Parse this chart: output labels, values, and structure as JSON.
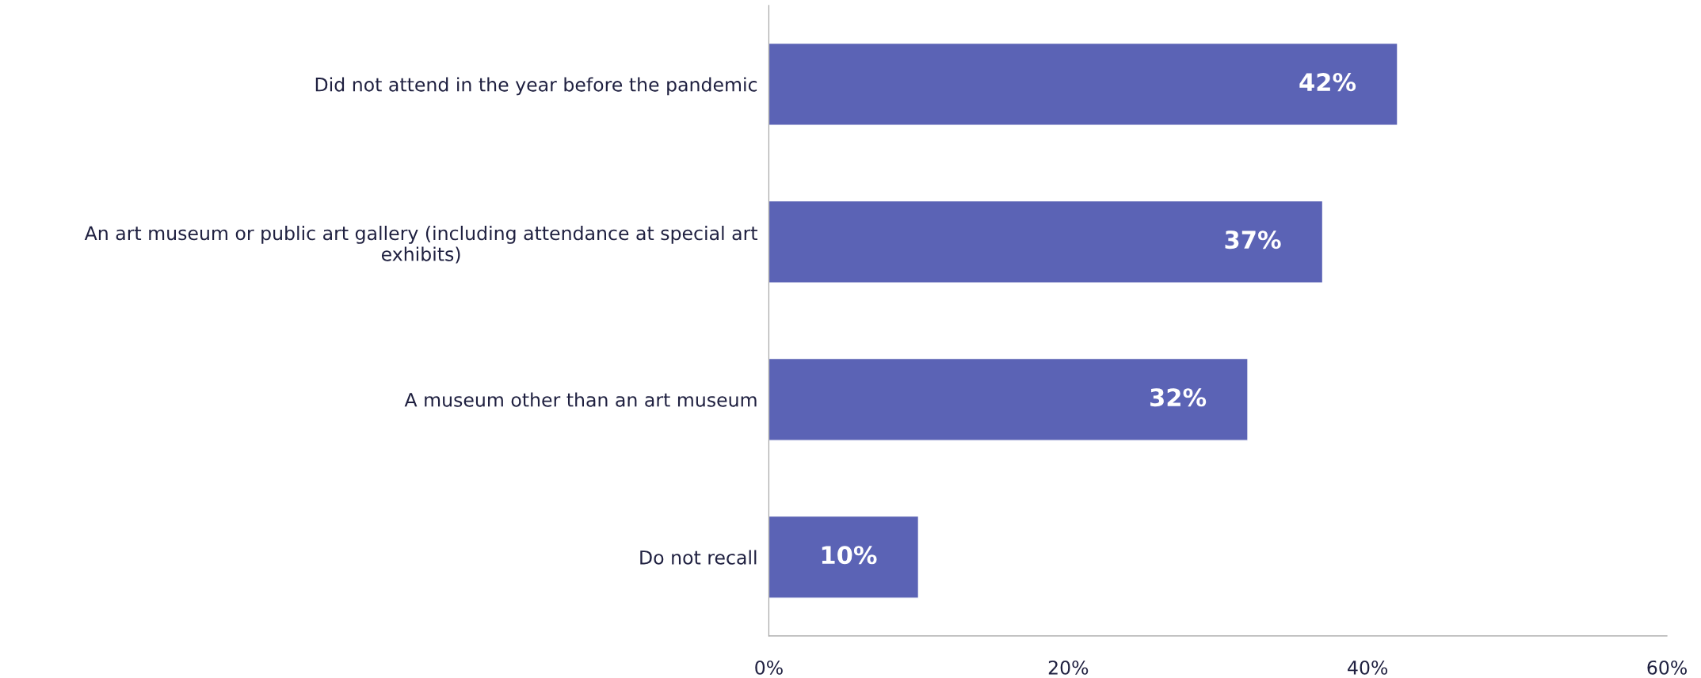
{
  "chart_data": {
    "type": "bar",
    "orientation": "horizontal",
    "categories": [
      "Did not attend in the year before the pandemic",
      "An art museum or public art gallery (including attendance at special art\nexhibits)",
      "A museum other than an art museum",
      "Do not recall"
    ],
    "values": [
      42,
      37,
      32,
      10
    ],
    "value_labels": [
      "42%",
      "37%",
      "32%",
      "10%"
    ],
    "color": "#5b63b5",
    "xlim": [
      0,
      60
    ],
    "xticks": [
      {
        "value": 0,
        "label": "0%"
      },
      {
        "value": 20,
        "label": "20%"
      },
      {
        "value": 40,
        "label": "40%"
      },
      {
        "value": 60,
        "label": "60%"
      }
    ],
    "grid": false,
    "legend": false
  }
}
